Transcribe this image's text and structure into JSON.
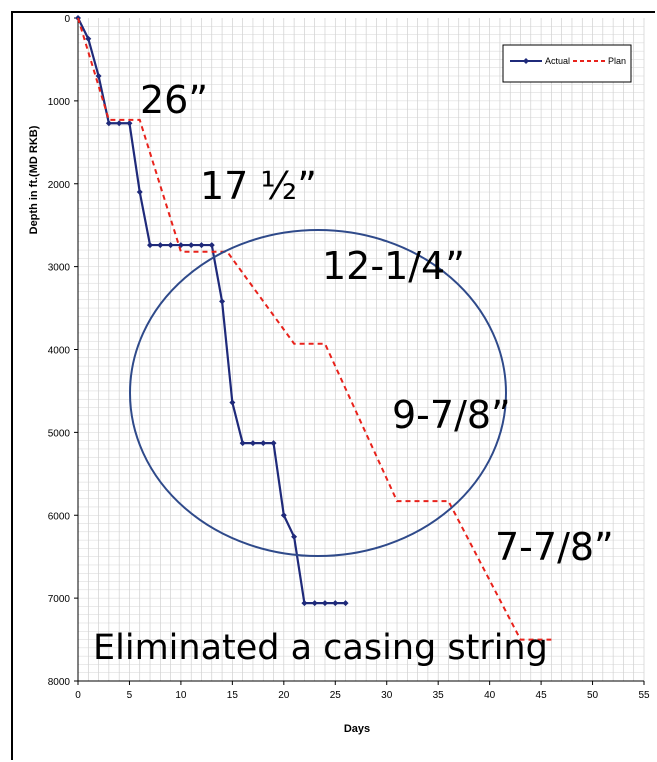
{
  "chart_data": {
    "type": "line",
    "xlabel": "Days",
    "ylabel": "Depth in ft.(MD RKB)",
    "xlim": [
      0,
      55
    ],
    "ylim": [
      0,
      8000
    ],
    "y_inverted": true,
    "x_ticks": [
      "0",
      "5",
      "10",
      "15",
      "20",
      "25",
      "30",
      "35",
      "40",
      "45",
      "50",
      "55"
    ],
    "y_ticks": [
      "0",
      "1000",
      "2000",
      "3000",
      "4000",
      "5000",
      "6000",
      "7000",
      "8000"
    ],
    "grid": true,
    "legend_position": "top-right",
    "series": [
      {
        "name": "Actual",
        "color": "#1f2a7a",
        "style": "solid-markers",
        "x": [
          0,
          1,
          2,
          3,
          4,
          5,
          6,
          7,
          8,
          9,
          10,
          11,
          12,
          13,
          14,
          15,
          16,
          17,
          18,
          19,
          20,
          21,
          22,
          23,
          24,
          25,
          26
        ],
        "y": [
          0,
          250,
          700,
          1270,
          1270,
          1270,
          2100,
          2740,
          2740,
          2740,
          2740,
          2740,
          2740,
          2740,
          3420,
          4640,
          5130,
          5130,
          5130,
          5130,
          6000,
          6260,
          7060,
          7060,
          7060,
          7060,
          7060
        ]
      },
      {
        "name": "Plan",
        "color": "#e8221b",
        "style": "dashed",
        "x": [
          0,
          3,
          6,
          10,
          14.5,
          21,
          24,
          31,
          36,
          43,
          46
        ],
        "y": [
          0,
          1230,
          1230,
          2820,
          2820,
          3930,
          3930,
          5830,
          5830,
          7500,
          7500
        ]
      }
    ],
    "annotations": [
      "26”",
      "17 ½”",
      "12-1/4”",
      "9-7/8”",
      "7-7/8”",
      "Eliminated a casing string"
    ]
  }
}
